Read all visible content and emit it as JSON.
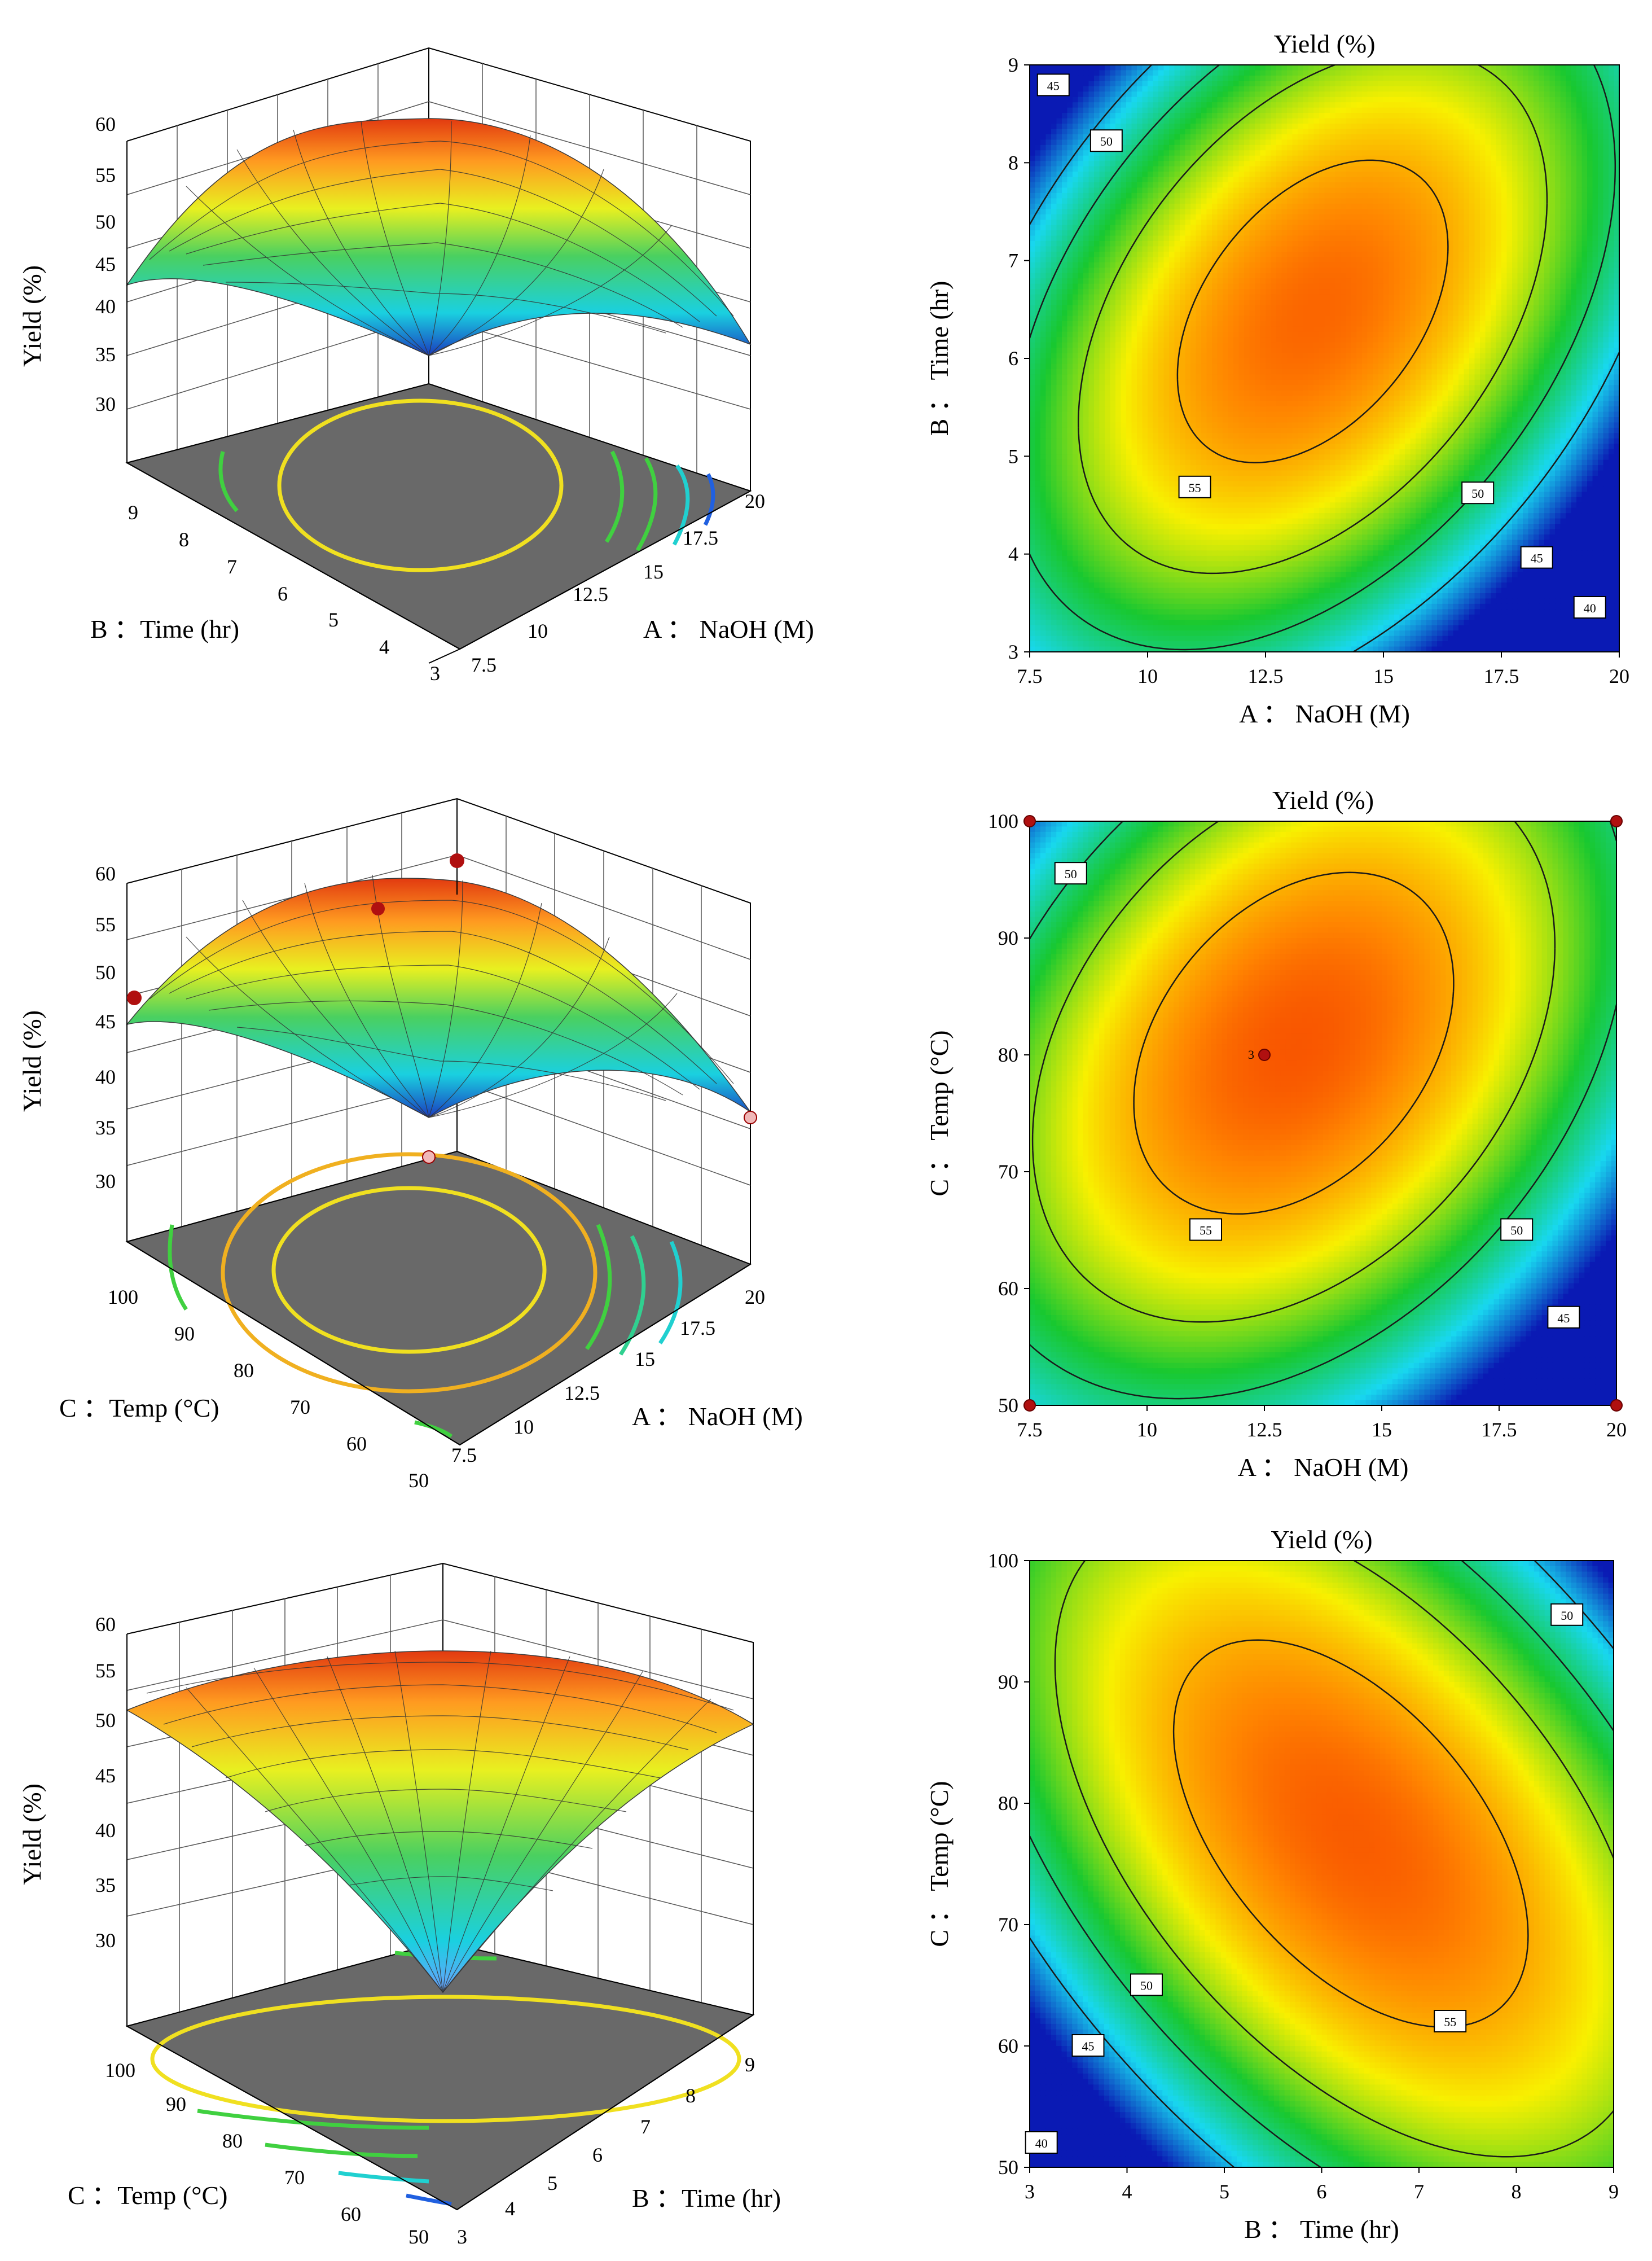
{
  "figure": {
    "colors": {
      "low": "#0a1ab4",
      "cyan": "#18d8f0",
      "green": "#18c830",
      "yellow": "#f8f000",
      "orange": "#ff8400",
      "high": "#f43800",
      "floor": "#696969",
      "contour_line": "#1a1a1a",
      "design_point": "#b01010",
      "design_point_below": "#f0b8b8"
    }
  },
  "chart_data": [
    {
      "id": "surface_AB",
      "type": "surface3d",
      "zlabel": "Yield (%)",
      "xlabel": "A ： NaOH (M)",
      "ylabel": "B ：Time (hr)",
      "x_ticks": [
        "7.5",
        "10",
        "12.5",
        "15",
        "17.5",
        "20"
      ],
      "y_ticks": [
        "3",
        "4",
        "5",
        "6",
        "7",
        "8",
        "9"
      ],
      "z_ticks": [
        "30",
        "35",
        "40",
        "45",
        "50",
        "55",
        "60"
      ],
      "xlim": [
        7.5,
        20
      ],
      "ylim": [
        3,
        9
      ],
      "zlim": [
        30,
        60
      ]
    },
    {
      "id": "contour_AB",
      "type": "contour",
      "title": "Yield (%)",
      "xlabel": "A ： NaOH (M)",
      "ylabel": "B ： Time (hr)",
      "xlim": [
        7.5,
        20
      ],
      "ylim": [
        3,
        9
      ],
      "x_ticks": [
        "7.5",
        "10",
        "12.5",
        "15",
        "17.5",
        "20"
      ],
      "y_ticks": [
        "3",
        "4",
        "5",
        "6",
        "7",
        "8",
        "9"
      ],
      "levels": [
        40,
        45,
        50,
        55
      ],
      "contour_labels": [
        "45",
        "50",
        "55",
        "50",
        "45",
        "40"
      ],
      "points": [],
      "center_label": ""
    },
    {
      "id": "surface_AC",
      "type": "surface3d",
      "zlabel": "Yield (%)",
      "xlabel": "A ： NaOH (M)",
      "ylabel": "C ：Temp (°C)",
      "x_ticks": [
        "7.5",
        "10",
        "12.5",
        "15",
        "17.5",
        "20"
      ],
      "y_ticks": [
        "50",
        "60",
        "70",
        "80",
        "90",
        "100"
      ],
      "z_ticks": [
        "30",
        "35",
        "40",
        "45",
        "50",
        "55",
        "60"
      ],
      "xlim": [
        7.5,
        20
      ],
      "ylim": [
        50,
        100
      ],
      "zlim": [
        30,
        60
      ]
    },
    {
      "id": "contour_AC",
      "type": "contour",
      "title": "Yield (%)",
      "xlabel": "A ： NaOH (M)",
      "ylabel": "C ： Temp (°C)",
      "xlim": [
        7.5,
        20
      ],
      "ylim": [
        50,
        100
      ],
      "x_ticks": [
        "7.5",
        "10",
        "12.5",
        "15",
        "17.5",
        "20"
      ],
      "y_ticks": [
        "50",
        "60",
        "70",
        "80",
        "90",
        "100"
      ],
      "levels": [
        45,
        50,
        55
      ],
      "contour_labels": [
        "50",
        "55",
        "50",
        "45"
      ],
      "points": [
        [
          7.5,
          100
        ],
        [
          20,
          100
        ],
        [
          7.5,
          50
        ],
        [
          20,
          50
        ],
        [
          12.5,
          80
        ]
      ],
      "center_label": "3"
    },
    {
      "id": "surface_BC",
      "type": "surface3d",
      "zlabel": "Yield (%)",
      "xlabel": "B ：Time (hr)",
      "ylabel": "C ：Temp (°C)",
      "x_ticks": [
        "3",
        "4",
        "5",
        "6",
        "7",
        "8",
        "9"
      ],
      "y_ticks": [
        "50",
        "60",
        "70",
        "80",
        "90",
        "100"
      ],
      "z_ticks": [
        "30",
        "35",
        "40",
        "45",
        "50",
        "55",
        "60"
      ],
      "xlim": [
        3,
        9
      ],
      "ylim": [
        50,
        100
      ],
      "zlim": [
        30,
        60
      ]
    },
    {
      "id": "contour_BC",
      "type": "contour",
      "title": "Yield (%)",
      "xlabel": "B ： Time (hr)",
      "ylabel": "C ： Temp (°C)",
      "xlim": [
        3,
        9
      ],
      "ylim": [
        50,
        100
      ],
      "x_ticks": [
        "3",
        "4",
        "5",
        "6",
        "7",
        "8",
        "9"
      ],
      "y_ticks": [
        "50",
        "60",
        "70",
        "80",
        "90",
        "100"
      ],
      "levels": [
        40,
        45,
        50,
        55
      ],
      "contour_labels": [
        "50",
        "50",
        "55",
        "45",
        "40"
      ],
      "points": [],
      "center_label": ""
    }
  ]
}
